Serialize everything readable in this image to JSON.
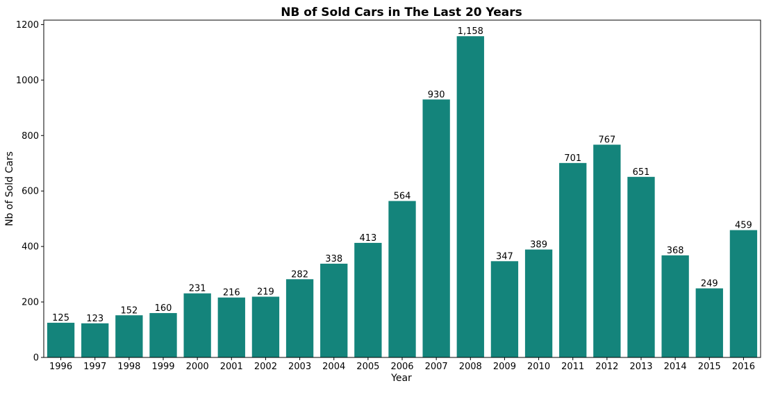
{
  "chart_data": {
    "type": "bar",
    "title": "NB of Sold Cars in The Last 20 Years",
    "xlabel": "Year",
    "ylabel": "Nb of Sold Cars",
    "categories": [
      "1996",
      "1997",
      "1998",
      "1999",
      "2000",
      "2001",
      "2002",
      "2003",
      "2004",
      "2005",
      "2006",
      "2007",
      "2008",
      "2009",
      "2010",
      "2011",
      "2012",
      "2013",
      "2014",
      "2015",
      "2016"
    ],
    "values": [
      125,
      123,
      152,
      160,
      231,
      216,
      219,
      282,
      338,
      413,
      564,
      930,
      1158,
      347,
      389,
      701,
      767,
      651,
      368,
      249,
      459
    ],
    "data_labels": [
      "125",
      "123",
      "152",
      "160",
      "231",
      "216",
      "219",
      "282",
      "338",
      "413",
      "564",
      "930",
      "1,158",
      "347",
      "389",
      "701",
      "767",
      "651",
      "368",
      "249",
      "459"
    ],
    "y_ticks": [
      "0",
      "200",
      "400",
      "600",
      "800",
      "1000",
      "1200"
    ],
    "y_tick_values": [
      0,
      200,
      400,
      600,
      800,
      1000,
      1200
    ],
    "ylim": [
      0,
      1216
    ],
    "grid": false,
    "bar_color": "#14847b"
  }
}
